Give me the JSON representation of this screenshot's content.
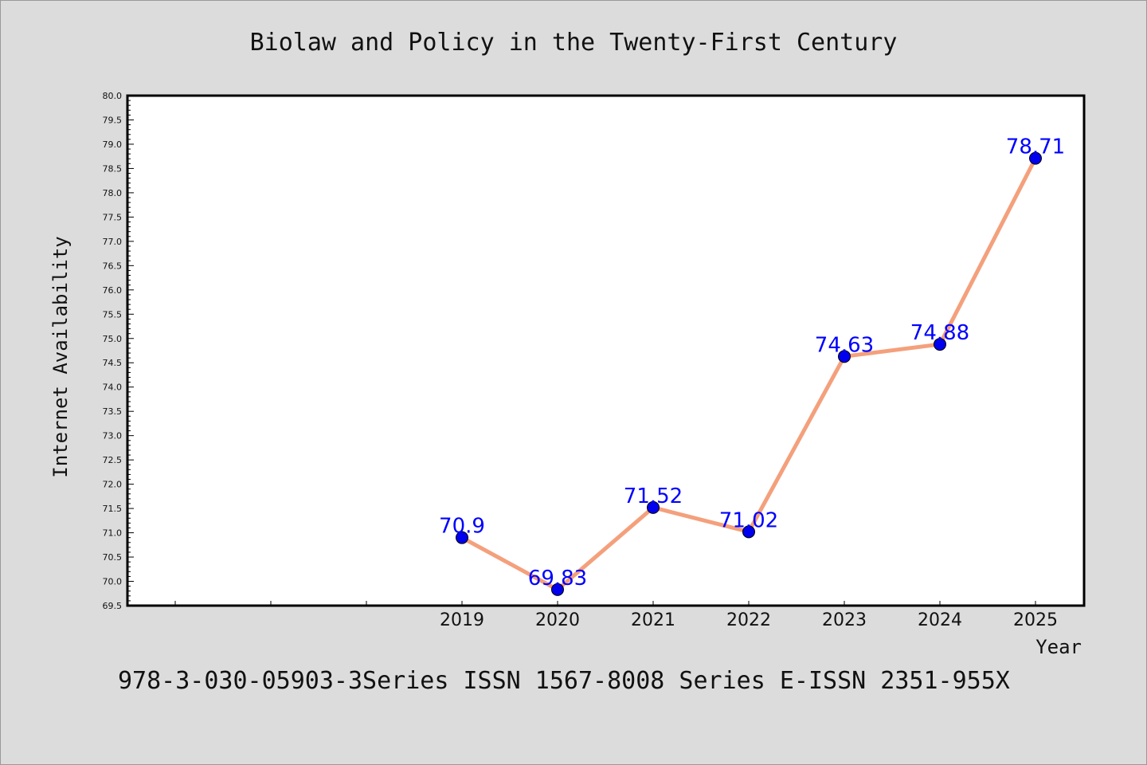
{
  "chart_data": {
    "type": "line",
    "title": "Biolaw and Policy in the Twenty-First Century",
    "xlabel": "Year",
    "ylabel": "Internet Availability",
    "categories": [
      "2019",
      "2020",
      "2021",
      "2022",
      "2023",
      "2024",
      "2025"
    ],
    "x_extra_ticks_before": 3,
    "series": [
      {
        "values": [
          70.9,
          69.83,
          71.52,
          71.02,
          74.63,
          74.88,
          78.71
        ]
      }
    ],
    "data_labels": [
      "70.9",
      "69.83",
      "71.52",
      "71.02",
      "74.63",
      "74.88",
      "78.71"
    ],
    "ylim": [
      69.5,
      80.0
    ],
    "ytick_step": 0.5,
    "ytick_labels": [
      "69.5",
      "70.0",
      "70.5",
      "71.0",
      "71.5",
      "72.0",
      "72.5",
      "73.0",
      "73.5",
      "74.0",
      "74.5",
      "75.0",
      "75.5",
      "76.0",
      "76.5",
      "77.0",
      "77.5",
      "78.0",
      "78.5",
      "79.0",
      "79.5",
      "80.0"
    ],
    "grid": false,
    "line_color": "#f4a07c",
    "marker_color": "#0000ee",
    "label_color": "#0000ff",
    "background": "#dcdcdc",
    "plot_background": "#ffffff"
  },
  "footer": "978-3-030-05903-3Series ISSN 1567-8008 Series E-ISSN 2351-955X"
}
